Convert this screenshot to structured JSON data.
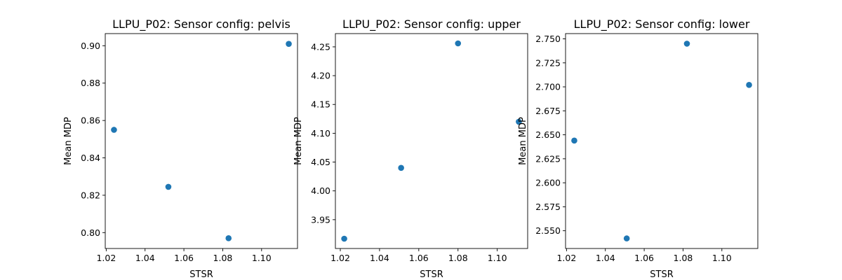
{
  "colors": {
    "marker": "#1f77b4",
    "axes": "#000000",
    "background": "#ffffff"
  },
  "chart_data": [
    {
      "type": "scatter",
      "title": "LLPU_P02: Sensor config: pelvis",
      "xlabel": "STSR",
      "ylabel": "Mean MDP",
      "x": [
        1.024,
        1.052,
        1.083,
        1.114
      ],
      "y": [
        0.855,
        0.8245,
        0.797,
        0.901
      ],
      "xlim": [
        1.0195,
        1.1185
      ],
      "ylim": [
        0.7915,
        0.9065
      ],
      "xticks": [
        1.02,
        1.04,
        1.06,
        1.08,
        1.1
      ],
      "xtick_labels": [
        "1.02",
        "1.04",
        "1.06",
        "1.08",
        "1.10"
      ],
      "yticks": [
        0.8,
        0.82,
        0.84,
        0.86,
        0.88,
        0.9
      ],
      "ytick_labels": [
        "0.80",
        "0.82",
        "0.84",
        "0.86",
        "0.88",
        "0.90"
      ],
      "grid": false,
      "legend": "none"
    },
    {
      "type": "scatter",
      "title": "LLPU_P02: Sensor config: upper",
      "xlabel": "STSR",
      "ylabel": "Mean MDP",
      "x": [
        1.022,
        1.051,
        1.08,
        1.111
      ],
      "y": [
        3.917,
        4.04,
        4.256,
        4.12
      ],
      "xlim": [
        1.0175,
        1.1155
      ],
      "ylim": [
        3.9,
        4.273
      ],
      "xticks": [
        1.02,
        1.04,
        1.06,
        1.08,
        1.1
      ],
      "xtick_labels": [
        "1.02",
        "1.04",
        "1.06",
        "1.08",
        "1.10"
      ],
      "yticks": [
        3.95,
        4.0,
        4.05,
        4.1,
        4.15,
        4.2,
        4.25
      ],
      "ytick_labels": [
        "3.95",
        "4.00",
        "4.05",
        "4.10",
        "4.15",
        "4.20",
        "4.25"
      ],
      "grid": false,
      "legend": "none"
    },
    {
      "type": "scatter",
      "title": "LLPU_P02: Sensor config: lower",
      "xlabel": "STSR",
      "ylabel": "Mean MDP",
      "x": [
        1.024,
        1.051,
        1.082,
        1.114
      ],
      "y": [
        2.644,
        2.542,
        2.745,
        2.702
      ],
      "xlim": [
        1.0195,
        1.1185
      ],
      "ylim": [
        2.5315,
        2.7555
      ],
      "xticks": [
        1.02,
        1.04,
        1.06,
        1.08,
        1.1
      ],
      "xtick_labels": [
        "1.02",
        "1.04",
        "1.06",
        "1.08",
        "1.10"
      ],
      "yticks": [
        2.55,
        2.575,
        2.6,
        2.625,
        2.65,
        2.675,
        2.7,
        2.725,
        2.75
      ],
      "ytick_labels": [
        "2.550",
        "2.575",
        "2.600",
        "2.625",
        "2.650",
        "2.675",
        "2.700",
        "2.725",
        "2.750"
      ],
      "grid": false,
      "legend": "none"
    }
  ]
}
